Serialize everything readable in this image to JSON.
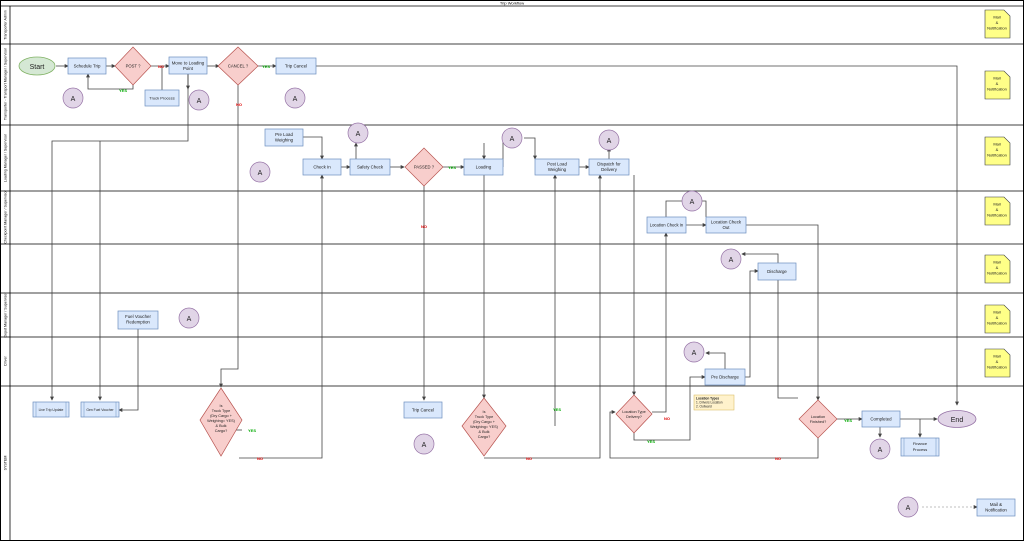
{
  "title": "Trip Workflow",
  "colors": {
    "process_fill": "#dae8fc",
    "process_stroke": "#6c8ebf",
    "decision_fill": "#f8cecc",
    "decision_stroke": "#b85450",
    "connector_fill": "#e1d5e7",
    "connector_stroke": "#9673a6",
    "terminal_fill": "#d5e8d4",
    "terminal_stroke": "#82b366",
    "note_fill": "#ffff88",
    "note_stroke": "#36393d",
    "yes_color": "#00aa00",
    "no_color": "#dd0000"
  },
  "lanes": [
    {
      "label": "Transporter Admin"
    },
    {
      "label": "Transporter - Transport Manager / Supervisor"
    },
    {
      "label": "Loading Manager / Supervisor"
    },
    {
      "label": "Checkpoint Manager / Supervisor"
    },
    {
      "label": ""
    },
    {
      "label": "Depot Manager / Supervisor"
    },
    {
      "label": "Driver"
    },
    {
      "label": "SYSTEM"
    }
  ],
  "nodes": {
    "start": "Start",
    "end": "End",
    "schedule_trip": "Schedule Trip",
    "post": "POST ?",
    "trip_cancel_top": "Trip Cancel",
    "truck_process": "Truck Process",
    "move_loading": [
      "Move to Loading",
      "Point"
    ],
    "cancel": "CANCEL ?",
    "pre_load": [
      "Pre Load",
      "Weighing"
    ],
    "check_in": "Check In",
    "safety_check": "Safety Check",
    "passed": "PASSED ?",
    "loading": "Loading",
    "post_load": [
      "Post Load",
      "Weighing"
    ],
    "dispatch": [
      "Dispatch for",
      "Delivery"
    ],
    "loc_check_in": "Location Check In",
    "loc_check_out": [
      "Location Check",
      "Out"
    ],
    "discharge": "Discharge",
    "fuel_voucher": [
      "Fuel Voucher",
      "Redemption"
    ],
    "pre_discharge": "Pre Discharge",
    "live_trip_update": "Live Trip Update",
    "gen_fuel_voucher": "Gen Fuel Voucher",
    "trip_cancel_sys": "Trip Cancel",
    "is_truck_1": [
      "Is",
      "Truck Type",
      "(Dry Cargo +",
      "Weighing= YES)",
      "& Bulk",
      "Cargo?"
    ],
    "is_truck_2": [
      "Is",
      "Truck Type",
      "(Dry Cargo +",
      "Weighing= YES)",
      "& Bulk",
      "Cargo?"
    ],
    "location_type": [
      "Location Type",
      "Delivery?"
    ],
    "location_finished": [
      "Location",
      "Finished?"
    ],
    "completed": "Completed",
    "finance": [
      "Finance",
      "Process"
    ],
    "mail_sys": [
      "Mail &",
      "Notification"
    ],
    "mail_note": [
      "Mail",
      "&",
      "Notification"
    ],
    "connector": "A"
  },
  "location_types": [
    "Location Types",
    "1. Drivers Location",
    "2. Outward"
  ],
  "edge_labels": {
    "yes": "YES",
    "no": "NO"
  }
}
